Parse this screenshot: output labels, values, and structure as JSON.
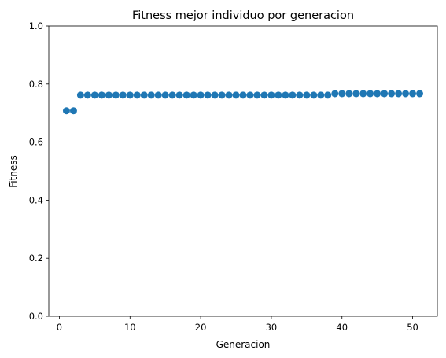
{
  "chart_data": {
    "type": "scatter",
    "title": "Fitness mejor individuo por generacion",
    "xlabel": "Generacion",
    "ylabel": "Fitness",
    "xlim": [
      -1.5,
      53.5
    ],
    "ylim": [
      0.0,
      1.0
    ],
    "grid": false,
    "xticks": [
      0,
      10,
      20,
      30,
      40,
      50
    ],
    "xtick_labels": [
      "0",
      "10",
      "20",
      "30",
      "40",
      "50"
    ],
    "yticks": [
      0.0,
      0.2,
      0.4,
      0.6,
      0.8,
      1.0
    ],
    "ytick_labels": [
      "0.0",
      "0.2",
      "0.4",
      "0.6",
      "0.8",
      "1.0"
    ],
    "marker_color": "#1f77b4",
    "series": [
      {
        "x": [
          1,
          2,
          3,
          4,
          5,
          6,
          7,
          8,
          9,
          10,
          11,
          12,
          13,
          14,
          15,
          16,
          17,
          18,
          19,
          20,
          21,
          22,
          23,
          24,
          25,
          26,
          27,
          28,
          29,
          30,
          31,
          32,
          33,
          34,
          35,
          36,
          37,
          38,
          39,
          40,
          41,
          42,
          43,
          44,
          45,
          46,
          47,
          48,
          49,
          50,
          51
        ],
        "y": [
          0.708,
          0.708,
          0.762,
          0.762,
          0.762,
          0.762,
          0.762,
          0.762,
          0.762,
          0.762,
          0.762,
          0.762,
          0.762,
          0.762,
          0.762,
          0.762,
          0.762,
          0.762,
          0.762,
          0.762,
          0.762,
          0.762,
          0.762,
          0.762,
          0.762,
          0.762,
          0.762,
          0.762,
          0.762,
          0.762,
          0.762,
          0.762,
          0.762,
          0.762,
          0.762,
          0.762,
          0.762,
          0.762,
          0.767,
          0.767,
          0.767,
          0.767,
          0.767,
          0.767,
          0.767,
          0.767,
          0.767,
          0.767,
          0.767,
          0.767,
          0.767
        ]
      }
    ]
  }
}
